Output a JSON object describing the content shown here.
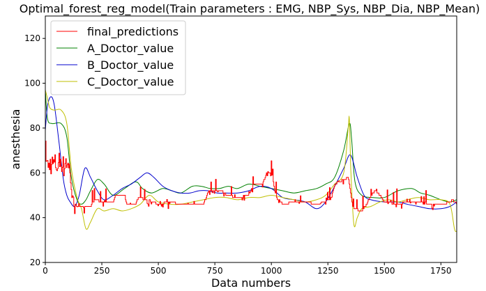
{
  "chart_data": {
    "type": "line",
    "title": "Optimal_forest_reg_model(Train parameters : EMG, NBP_Sys, NBP_Dia, NBP_Mean)",
    "xlabel": "Data numbers",
    "ylabel": "anesthesia",
    "xlim": [
      0,
      1820
    ],
    "ylim": [
      20,
      130
    ],
    "x_ticks": [
      0,
      250,
      500,
      750,
      1000,
      1250,
      1500,
      1750
    ],
    "y_ticks": [
      20,
      40,
      60,
      80,
      100,
      120
    ],
    "grid": false,
    "legend_position": "top-left",
    "series": [
      {
        "name": "final_predictions",
        "color": "#ff0000",
        "style": "step-noisy",
        "points": [
          [
            0,
            70
          ],
          [
            10,
            62
          ],
          [
            20,
            64
          ],
          [
            40,
            64
          ],
          [
            50,
            63
          ],
          [
            60,
            65
          ],
          [
            70,
            66
          ],
          [
            80,
            62
          ],
          [
            90,
            66
          ],
          [
            100,
            63
          ],
          [
            110,
            60
          ],
          [
            115,
            52
          ],
          [
            120,
            46
          ],
          [
            150,
            45
          ],
          [
            200,
            45
          ],
          [
            220,
            48
          ],
          [
            250,
            47
          ],
          [
            300,
            47
          ],
          [
            310,
            50
          ],
          [
            350,
            50
          ],
          [
            360,
            46
          ],
          [
            400,
            46
          ],
          [
            410,
            49
          ],
          [
            450,
            48
          ],
          [
            500,
            46
          ],
          [
            550,
            47
          ],
          [
            600,
            46
          ],
          [
            700,
            46
          ],
          [
            720,
            52
          ],
          [
            780,
            52
          ],
          [
            800,
            50
          ],
          [
            850,
            49
          ],
          [
            900,
            50
          ],
          [
            920,
            55
          ],
          [
            960,
            55
          ],
          [
            980,
            60
          ],
          [
            1000,
            60
          ],
          [
            1020,
            49
          ],
          [
            1050,
            46
          ],
          [
            1100,
            47
          ],
          [
            1150,
            47
          ],
          [
            1200,
            46
          ],
          [
            1260,
            48
          ],
          [
            1280,
            55
          ],
          [
            1300,
            56
          ],
          [
            1320,
            57
          ],
          [
            1340,
            58
          ],
          [
            1360,
            44
          ],
          [
            1400,
            43
          ],
          [
            1420,
            46
          ],
          [
            1440,
            50
          ],
          [
            1460,
            52
          ],
          [
            1480,
            50
          ],
          [
            1500,
            47
          ],
          [
            1560,
            46
          ],
          [
            1600,
            47
          ],
          [
            1660,
            47
          ],
          [
            1680,
            46
          ],
          [
            1700,
            46
          ],
          [
            1760,
            46
          ],
          [
            1790,
            47
          ],
          [
            1800,
            48
          ],
          [
            1820,
            46
          ]
        ]
      },
      {
        "name": "A_Doctor_value",
        "color": "#008000",
        "style": "smooth",
        "points": [
          [
            0,
            97
          ],
          [
            10,
            84
          ],
          [
            30,
            82
          ],
          [
            70,
            82
          ],
          [
            95,
            76
          ],
          [
            115,
            58
          ],
          [
            140,
            48
          ],
          [
            160,
            46
          ],
          [
            180,
            48
          ],
          [
            200,
            52
          ],
          [
            230,
            57
          ],
          [
            260,
            55
          ],
          [
            300,
            50
          ],
          [
            350,
            53
          ],
          [
            400,
            56
          ],
          [
            430,
            53
          ],
          [
            470,
            51
          ],
          [
            520,
            53
          ],
          [
            560,
            52
          ],
          [
            600,
            51
          ],
          [
            650,
            54
          ],
          [
            690,
            54
          ],
          [
            730,
            53
          ],
          [
            770,
            53
          ],
          [
            810,
            54
          ],
          [
            850,
            53
          ],
          [
            900,
            55
          ],
          [
            950,
            54
          ],
          [
            1000,
            53
          ],
          [
            1050,
            52
          ],
          [
            1100,
            51
          ],
          [
            1150,
            52
          ],
          [
            1200,
            53
          ],
          [
            1240,
            55
          ],
          [
            1280,
            58
          ],
          [
            1320,
            70
          ],
          [
            1345,
            82
          ],
          [
            1355,
            75
          ],
          [
            1370,
            56
          ],
          [
            1400,
            50
          ],
          [
            1450,
            49
          ],
          [
            1500,
            49
          ],
          [
            1560,
            52
          ],
          [
            1620,
            53
          ],
          [
            1660,
            51
          ],
          [
            1700,
            50
          ],
          [
            1750,
            48
          ],
          [
            1790,
            47
          ],
          [
            1820,
            48
          ]
        ]
      },
      {
        "name": "B_Doctor_value",
        "color": "#0000cc",
        "style": "smooth",
        "points": [
          [
            0,
            79
          ],
          [
            10,
            90
          ],
          [
            25,
            94
          ],
          [
            40,
            90
          ],
          [
            60,
            74
          ],
          [
            80,
            57
          ],
          [
            95,
            50
          ],
          [
            110,
            47
          ],
          [
            130,
            45
          ],
          [
            150,
            50
          ],
          [
            175,
            62
          ],
          [
            200,
            58
          ],
          [
            230,
            52
          ],
          [
            260,
            48
          ],
          [
            300,
            50
          ],
          [
            340,
            53
          ],
          [
            380,
            55
          ],
          [
            420,
            58
          ],
          [
            450,
            60
          ],
          [
            480,
            58
          ],
          [
            520,
            54
          ],
          [
            560,
            52
          ],
          [
            600,
            51
          ],
          [
            640,
            51
          ],
          [
            680,
            52
          ],
          [
            720,
            52
          ],
          [
            760,
            51
          ],
          [
            800,
            51
          ],
          [
            850,
            51
          ],
          [
            900,
            52
          ],
          [
            950,
            54
          ],
          [
            1000,
            53
          ],
          [
            1050,
            49
          ],
          [
            1100,
            48
          ],
          [
            1150,
            47
          ],
          [
            1200,
            44
          ],
          [
            1240,
            47
          ],
          [
            1280,
            54
          ],
          [
            1320,
            62
          ],
          [
            1350,
            68
          ],
          [
            1380,
            58
          ],
          [
            1410,
            50
          ],
          [
            1440,
            48
          ],
          [
            1500,
            47
          ],
          [
            1560,
            47
          ],
          [
            1600,
            46
          ],
          [
            1650,
            45
          ],
          [
            1700,
            44
          ],
          [
            1750,
            44
          ],
          [
            1790,
            45
          ],
          [
            1820,
            47
          ]
        ]
      },
      {
        "name": "C_Doctor_value",
        "color": "#bfbf00",
        "style": "smooth",
        "points": [
          [
            0,
            97
          ],
          [
            10,
            93
          ],
          [
            20,
            89
          ],
          [
            40,
            88
          ],
          [
            70,
            88
          ],
          [
            95,
            82
          ],
          [
            115,
            62
          ],
          [
            140,
            49
          ],
          [
            160,
            44
          ],
          [
            180,
            35
          ],
          [
            200,
            38
          ],
          [
            230,
            44
          ],
          [
            260,
            43
          ],
          [
            300,
            44
          ],
          [
            340,
            43
          ],
          [
            380,
            44
          ],
          [
            420,
            46
          ],
          [
            460,
            50
          ],
          [
            500,
            47
          ],
          [
            550,
            46
          ],
          [
            600,
            46
          ],
          [
            650,
            47
          ],
          [
            700,
            48
          ],
          [
            750,
            49
          ],
          [
            800,
            49
          ],
          [
            850,
            48
          ],
          [
            900,
            49
          ],
          [
            950,
            49
          ],
          [
            1000,
            50
          ],
          [
            1050,
            49
          ],
          [
            1100,
            48
          ],
          [
            1150,
            47
          ],
          [
            1200,
            48
          ],
          [
            1240,
            50
          ],
          [
            1280,
            55
          ],
          [
            1320,
            60
          ],
          [
            1340,
            80
          ],
          [
            1345,
            84
          ],
          [
            1352,
            60
          ],
          [
            1365,
            37
          ],
          [
            1380,
            40
          ],
          [
            1400,
            44
          ],
          [
            1440,
            45
          ],
          [
            1480,
            47
          ],
          [
            1520,
            48
          ],
          [
            1560,
            47
          ],
          [
            1600,
            48
          ],
          [
            1650,
            49
          ],
          [
            1700,
            48
          ],
          [
            1750,
            48
          ],
          [
            1790,
            46
          ],
          [
            1810,
            35
          ],
          [
            1820,
            34
          ]
        ]
      }
    ]
  }
}
